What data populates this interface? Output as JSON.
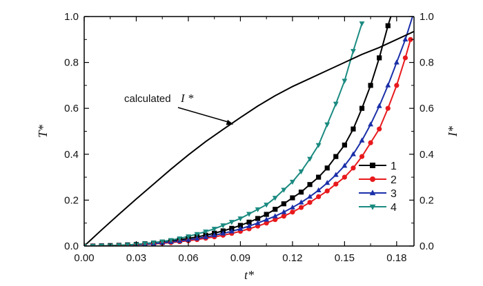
{
  "chart_data": {
    "type": "line",
    "xlabel": "t*",
    "ylabel_left": "T*",
    "ylabel_right": "I*",
    "xlim": [
      0.0,
      0.19
    ],
    "ylim_left": [
      0.0,
      1.0
    ],
    "ylim_right": [
      0.0,
      1.0
    ],
    "x_ticks": [
      "0.00",
      "0.03",
      "0.06",
      "0.09",
      "0.12",
      "0.15",
      "0.18"
    ],
    "y_ticks_left": [
      "0.0",
      "0.2",
      "0.4",
      "0.6",
      "0.8",
      "1.0"
    ],
    "y_ticks_right": [
      "0.0",
      "0.2",
      "0.4",
      "0.6",
      "0.8",
      "1.0"
    ],
    "annotation": {
      "text": "calculated",
      "var": "I *",
      "target_x": 0.086,
      "target_y": 0.53
    },
    "legend_position": "lower-right",
    "series": [
      {
        "name": "1",
        "color": "#000000",
        "marker": "square",
        "x": [
          0.0,
          0.005,
          0.01,
          0.015,
          0.02,
          0.025,
          0.03,
          0.035,
          0.04,
          0.045,
          0.05,
          0.055,
          0.06,
          0.065,
          0.07,
          0.075,
          0.08,
          0.085,
          0.09,
          0.095,
          0.1,
          0.105,
          0.11,
          0.115,
          0.12,
          0.125,
          0.13,
          0.135,
          0.14,
          0.145,
          0.15,
          0.155,
          0.16,
          0.165,
          0.17,
          0.175,
          0.18,
          0.185
        ],
        "y": [
          0.0,
          0.0,
          0.001,
          0.002,
          0.003,
          0.005,
          0.007,
          0.01,
          0.013,
          0.017,
          0.022,
          0.027,
          0.033,
          0.04,
          0.047,
          0.056,
          0.066,
          0.077,
          0.09,
          0.104,
          0.12,
          0.138,
          0.16,
          0.184,
          0.21,
          0.235,
          0.268,
          0.3,
          0.34,
          0.39,
          0.44,
          0.51,
          0.6,
          0.7,
          0.82,
          0.96,
          1.08,
          1.22
        ]
      },
      {
        "name": "2",
        "color": "#e8191c",
        "marker": "circle",
        "x": [
          0.0,
          0.005,
          0.01,
          0.015,
          0.02,
          0.025,
          0.03,
          0.035,
          0.04,
          0.045,
          0.05,
          0.055,
          0.06,
          0.065,
          0.07,
          0.075,
          0.08,
          0.085,
          0.09,
          0.095,
          0.1,
          0.105,
          0.11,
          0.115,
          0.12,
          0.125,
          0.13,
          0.135,
          0.14,
          0.145,
          0.15,
          0.155,
          0.16,
          0.165,
          0.17,
          0.175,
          0.18,
          0.185,
          0.188
        ],
        "y": [
          0.0,
          0.0,
          0.0,
          0.001,
          0.002,
          0.003,
          0.005,
          0.007,
          0.009,
          0.012,
          0.015,
          0.019,
          0.023,
          0.028,
          0.034,
          0.04,
          0.047,
          0.055,
          0.064,
          0.075,
          0.087,
          0.1,
          0.115,
          0.13,
          0.148,
          0.168,
          0.19,
          0.215,
          0.24,
          0.27,
          0.3,
          0.34,
          0.39,
          0.45,
          0.51,
          0.6,
          0.7,
          0.82,
          0.9
        ]
      },
      {
        "name": "3",
        "color": "#1a2fa8",
        "marker": "triangle-up",
        "x": [
          0.0,
          0.005,
          0.01,
          0.015,
          0.02,
          0.025,
          0.03,
          0.035,
          0.04,
          0.045,
          0.05,
          0.055,
          0.06,
          0.065,
          0.07,
          0.075,
          0.08,
          0.085,
          0.09,
          0.095,
          0.1,
          0.105,
          0.11,
          0.115,
          0.12,
          0.125,
          0.13,
          0.135,
          0.14,
          0.145,
          0.15,
          0.155,
          0.16,
          0.165,
          0.17,
          0.175,
          0.18,
          0.185,
          0.19
        ],
        "y": [
          0.0,
          0.0,
          0.0,
          0.001,
          0.002,
          0.004,
          0.006,
          0.008,
          0.011,
          0.014,
          0.018,
          0.022,
          0.027,
          0.033,
          0.039,
          0.047,
          0.055,
          0.064,
          0.075,
          0.087,
          0.1,
          0.115,
          0.13,
          0.148,
          0.168,
          0.19,
          0.215,
          0.243,
          0.275,
          0.31,
          0.35,
          0.4,
          0.46,
          0.53,
          0.61,
          0.7,
          0.8,
          0.9,
          1.02
        ]
      },
      {
        "name": "4",
        "color": "#1a8a80",
        "marker": "triangle-down",
        "x": [
          0.0,
          0.005,
          0.01,
          0.015,
          0.02,
          0.025,
          0.03,
          0.035,
          0.04,
          0.045,
          0.05,
          0.055,
          0.06,
          0.065,
          0.07,
          0.075,
          0.08,
          0.085,
          0.09,
          0.095,
          0.1,
          0.105,
          0.11,
          0.115,
          0.12,
          0.125,
          0.13,
          0.135,
          0.14,
          0.145,
          0.15,
          0.155,
          0.16
        ],
        "y": [
          0.0,
          0.0,
          0.001,
          0.002,
          0.003,
          0.005,
          0.007,
          0.011,
          0.015,
          0.02,
          0.026,
          0.033,
          0.042,
          0.052,
          0.063,
          0.075,
          0.09,
          0.105,
          0.12,
          0.14,
          0.16,
          0.18,
          0.21,
          0.245,
          0.28,
          0.325,
          0.38,
          0.44,
          0.53,
          0.62,
          0.72,
          0.85,
          0.97
        ]
      },
      {
        "name": "calculated I*",
        "color": "#000000",
        "marker": "none",
        "axis": "right",
        "x": [
          0.0,
          0.01,
          0.02,
          0.03,
          0.04,
          0.05,
          0.06,
          0.07,
          0.08,
          0.09,
          0.1,
          0.11,
          0.12,
          0.13,
          0.14,
          0.15,
          0.16,
          0.17,
          0.18,
          0.19
        ],
        "y": [
          0.0,
          0.07,
          0.138,
          0.205,
          0.27,
          0.335,
          0.397,
          0.455,
          0.508,
          0.56,
          0.61,
          0.655,
          0.695,
          0.73,
          0.765,
          0.8,
          0.835,
          0.865,
          0.9,
          0.935
        ]
      }
    ]
  }
}
